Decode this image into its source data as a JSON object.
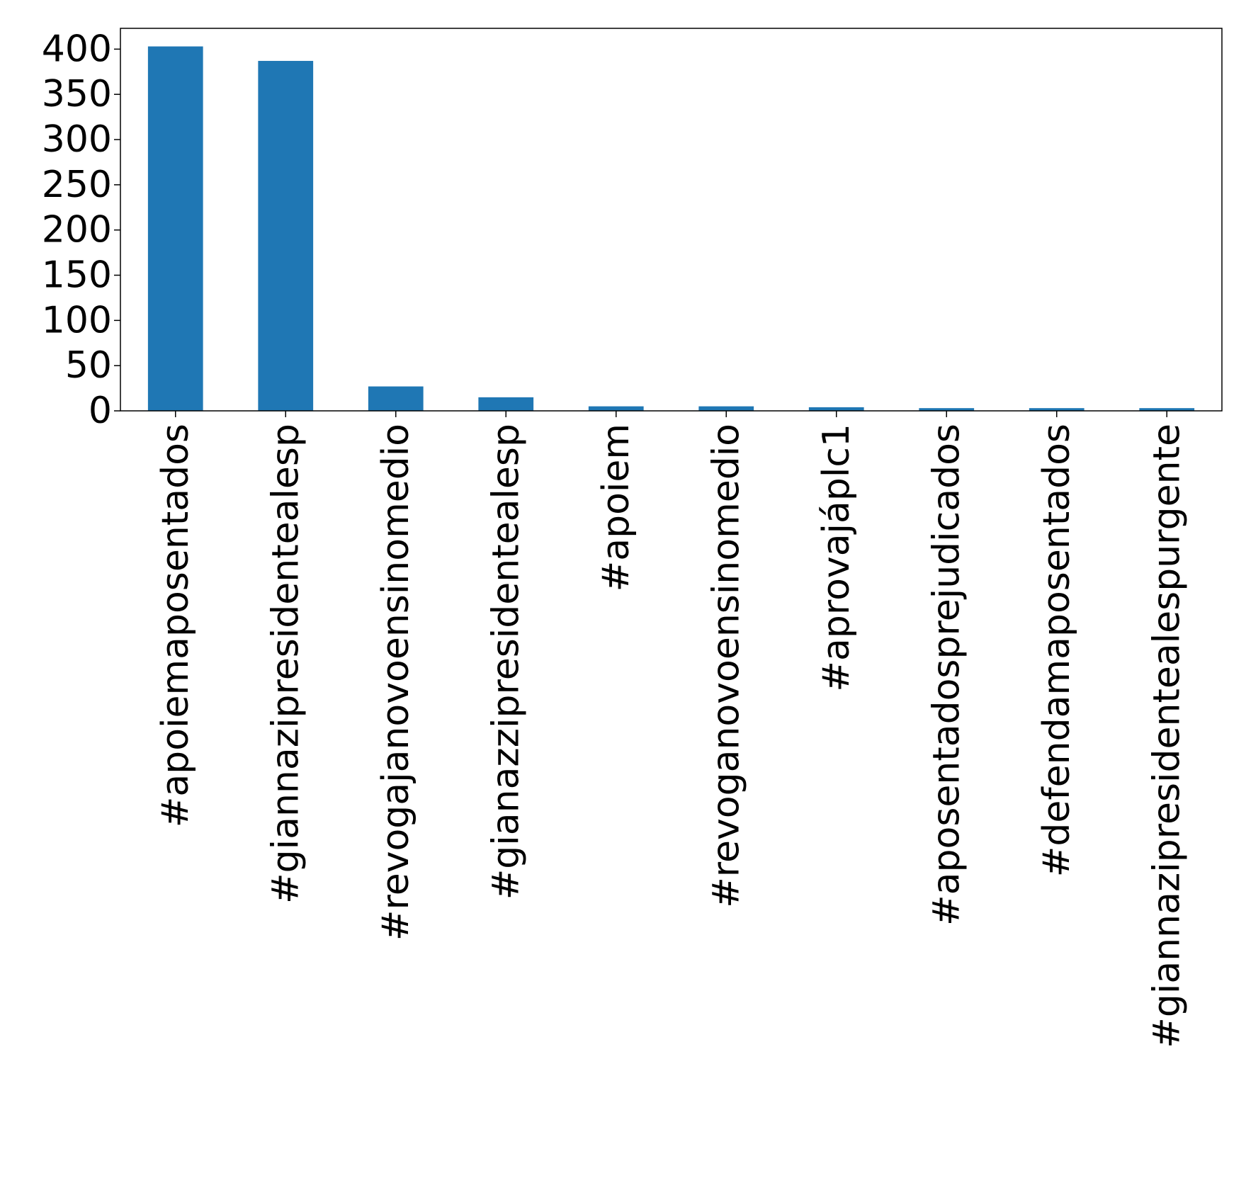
{
  "chart_data": {
    "type": "bar",
    "categories": [
      "#apoiemaposentados",
      "#giannazipresidentealesp",
      "#revogajanovoensinomedio",
      "#gianazzipresidentealesp",
      "#apoiem",
      "#revoganovoensinomedio",
      "#aprovajáplc1",
      "#aposentadosprejudicados",
      "#defendamaposentados",
      "#giannazipresidentealespurgente"
    ],
    "values": [
      403,
      387,
      27,
      15,
      5,
      5,
      4,
      3,
      3,
      3
    ],
    "yticks": [
      0,
      50,
      100,
      150,
      200,
      250,
      300,
      350,
      400
    ],
    "ytick_labels": [
      "0",
      "50",
      "100",
      "150",
      "200",
      "250",
      "300",
      "350",
      "400"
    ],
    "ylim": [
      0,
      423
    ],
    "title": "",
    "xlabel": "",
    "ylabel": "",
    "grid": false,
    "legend": "none",
    "bar_color": "#1f77b4"
  }
}
